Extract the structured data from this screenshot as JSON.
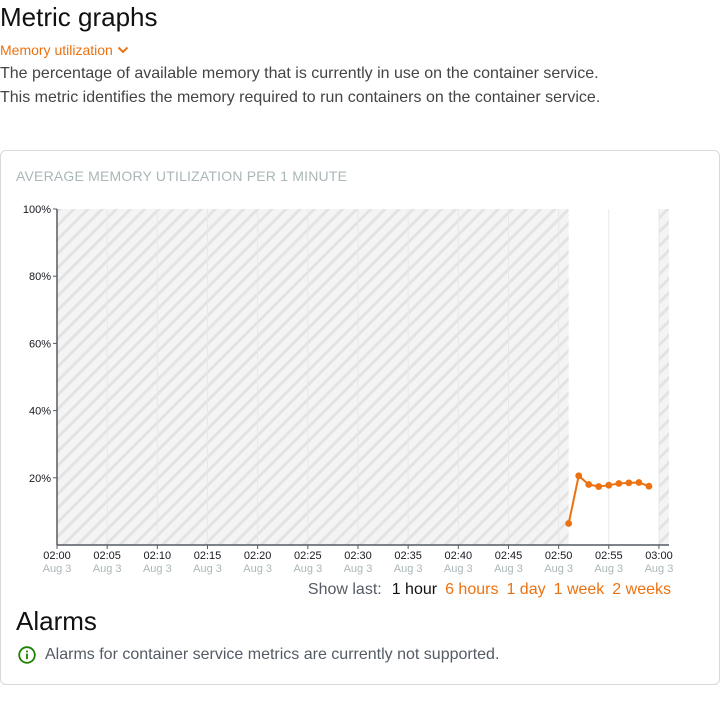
{
  "header": {
    "title": "Metric graphs",
    "metric_selector": "Memory utilization",
    "description": "The percentage of available memory that is currently in use on the container service. This metric identifies the memory required to run containers on the container service."
  },
  "chart_panel": {
    "title": "AVERAGE MEMORY UTILIZATION PER 1 MINUTE"
  },
  "chart_data": {
    "type": "line",
    "title": "AVERAGE MEMORY UTILIZATION PER 1 MINUTE",
    "xlabel": "",
    "ylabel": "",
    "y_ticks": [
      "20%",
      "40%",
      "60%",
      "80%",
      "100%"
    ],
    "y_tick_values": [
      20,
      40,
      60,
      80,
      100
    ],
    "ylim": [
      0,
      100
    ],
    "x_ticks": [
      {
        "time": "02:00",
        "date": "Aug 3"
      },
      {
        "time": "02:05",
        "date": "Aug 3"
      },
      {
        "time": "02:10",
        "date": "Aug 3"
      },
      {
        "time": "02:15",
        "date": "Aug 3"
      },
      {
        "time": "02:20",
        "date": "Aug 3"
      },
      {
        "time": "02:25",
        "date": "Aug 3"
      },
      {
        "time": "02:30",
        "date": "Aug 3"
      },
      {
        "time": "02:35",
        "date": "Aug 3"
      },
      {
        "time": "02:40",
        "date": "Aug 3"
      },
      {
        "time": "02:45",
        "date": "Aug 3"
      },
      {
        "time": "02:50",
        "date": "Aug 3"
      },
      {
        "time": "02:55",
        "date": "Aug 3"
      },
      {
        "time": "03:00",
        "date": "Aug 3"
      }
    ],
    "xlim": [
      "02:00",
      "03:01"
    ],
    "no_data_ranges": [
      [
        "02:00",
        "02:51"
      ],
      [
        "03:00",
        "03:01"
      ]
    ],
    "series": [
      {
        "color": "#ec7211",
        "points": [
          {
            "x": "02:51",
            "y": 6.4
          },
          {
            "x": "02:52",
            "y": 20.6
          },
          {
            "x": "02:53",
            "y": 18.0
          },
          {
            "x": "02:54",
            "y": 17.4
          },
          {
            "x": "02:55",
            "y": 17.8
          },
          {
            "x": "02:56",
            "y": 18.3
          },
          {
            "x": "02:57",
            "y": 18.5
          },
          {
            "x": "02:58",
            "y": 18.6
          },
          {
            "x": "02:59",
            "y": 17.5
          }
        ]
      }
    ],
    "grid": true
  },
  "range_selector": {
    "label": "Show last:",
    "options": [
      "1 hour",
      "6 hours",
      "1 day",
      "1 week",
      "2 weeks"
    ],
    "selected": "1 hour"
  },
  "alarms": {
    "heading": "Alarms",
    "message": "Alarms for container service metrics are currently not supported.",
    "icon": "info-icon",
    "icon_color": "#1d8102"
  },
  "colors": {
    "accent": "#ec7211",
    "muted": "#aab7b8"
  }
}
